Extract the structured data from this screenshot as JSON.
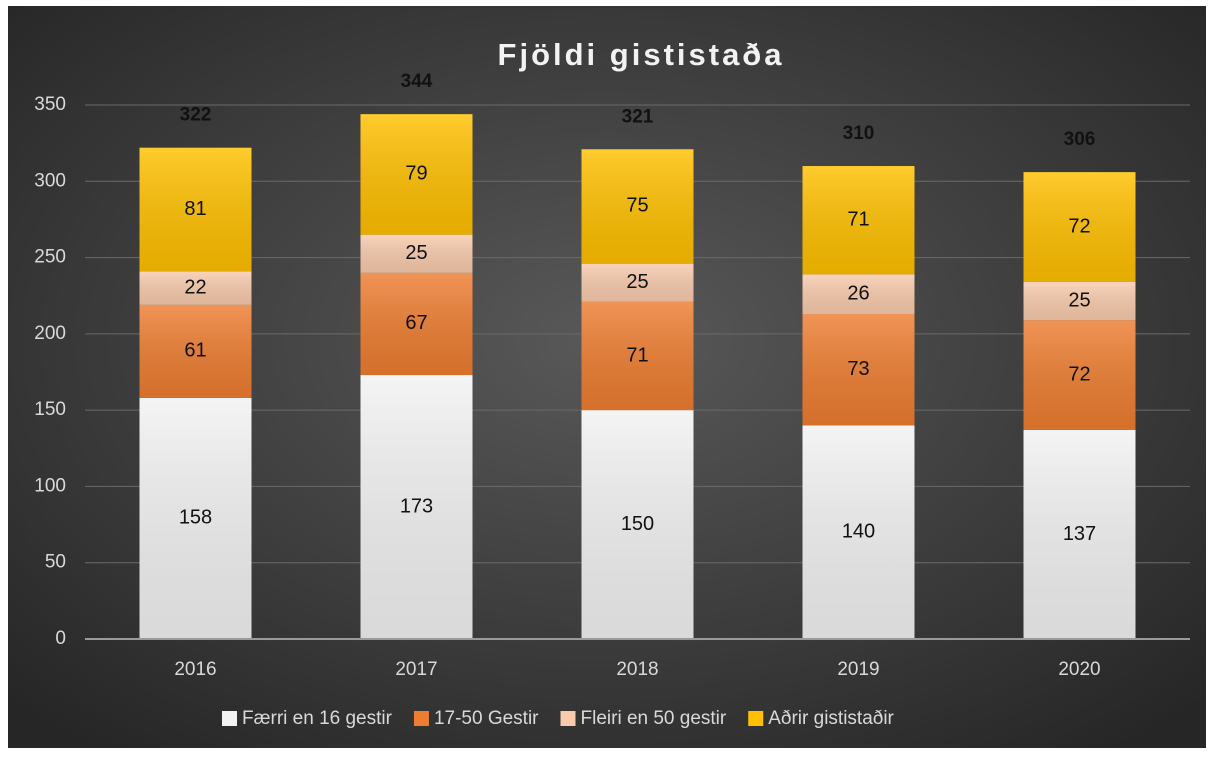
{
  "chart_data": {
    "type": "bar",
    "stacked": true,
    "title": "Fjöldi gististaða",
    "categories": [
      "2016",
      "2017",
      "2018",
      "2019",
      "2020"
    ],
    "series": [
      {
        "name": "Færri en 16 gestir",
        "color": "#f2f2f2",
        "values": [
          158,
          173,
          150,
          140,
          137
        ]
      },
      {
        "name": "17-50 Gestir",
        "color": "#ed7d31",
        "values": [
          61,
          67,
          71,
          73,
          72
        ]
      },
      {
        "name": "Fleiri en 50 gestir",
        "color": "#f8cbad",
        "values": [
          22,
          25,
          25,
          26,
          25
        ]
      },
      {
        "name": "Aðrir gististaðir",
        "color": "#ffc000",
        "values": [
          81,
          79,
          75,
          71,
          72
        ]
      }
    ],
    "totals": [
      322,
      344,
      321,
      310,
      306
    ],
    "ylim": [
      0,
      350
    ],
    "yticks": [
      0,
      50,
      100,
      150,
      200,
      250,
      300,
      350
    ],
    "grid": true,
    "legend": "bottom"
  }
}
